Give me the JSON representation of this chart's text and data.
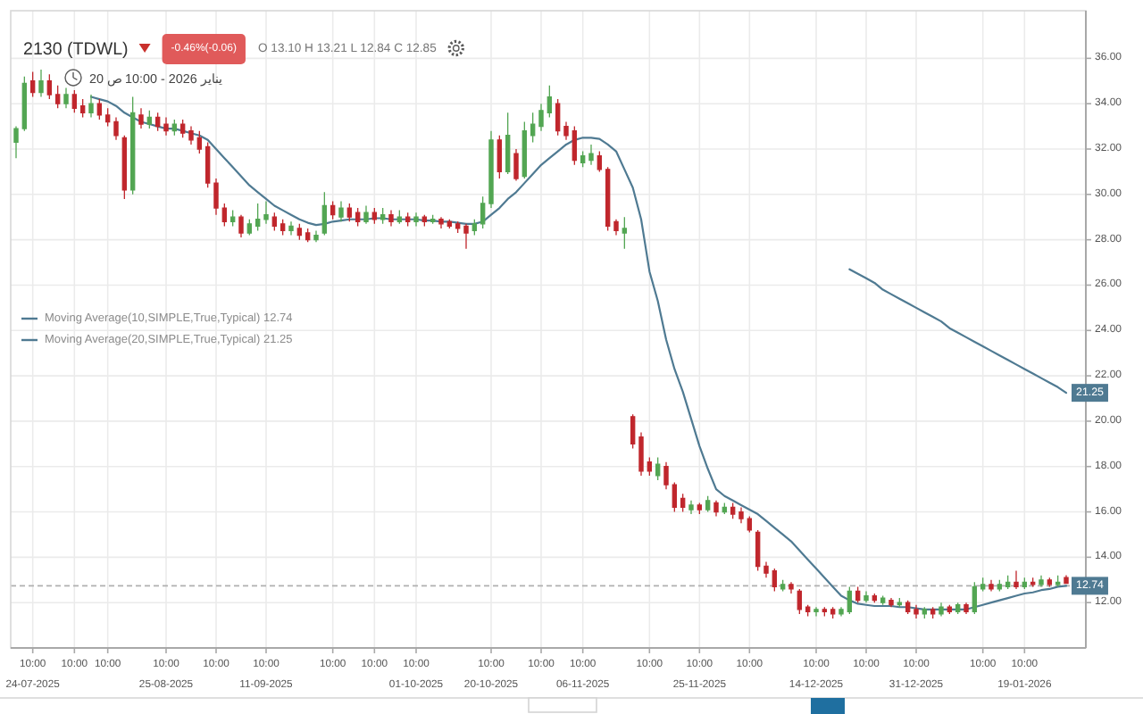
{
  "chart_data": {
    "type": "candlestick",
    "title": "2130 (TDWL)",
    "subtitle": "20 يناير 2026 - 10:00 ص",
    "annotations": [
      "-0.46%(-0.06)",
      "O 13.10 H 13.21 L 12.84 C 12.85"
    ],
    "categories": [
      null,
      null,
      "10:00 24-07-2025",
      null,
      null,
      null,
      null,
      "10:00",
      null,
      null,
      null,
      "10:00",
      null,
      null,
      null,
      null,
      null,
      null,
      "10:00 25-08-2025",
      null,
      null,
      null,
      null,
      null,
      "10:00",
      null,
      null,
      null,
      null,
      null,
      "10:00 11-09-2025",
      null,
      null,
      null,
      null,
      null,
      null,
      null,
      "10:00",
      null,
      null,
      null,
      null,
      "10:00",
      null,
      null,
      null,
      null,
      "10:00 01-10-2025",
      null,
      null,
      null,
      null,
      null,
      null,
      null,
      null,
      "10:00 20-10-2025",
      null,
      null,
      null,
      null,
      null,
      "10:00",
      null,
      null,
      null,
      null,
      "10:00 06-11-2025",
      null,
      null,
      null,
      null,
      null,
      null,
      null,
      "10:00",
      null,
      null,
      null,
      null,
      null,
      "10:00 25-11-2025",
      null,
      null,
      null,
      null,
      null,
      "10:00",
      null,
      null,
      null,
      null,
      null,
      null,
      null,
      "10:00 14-12-2025",
      null,
      null,
      null,
      null,
      null,
      "10:00",
      null,
      null,
      null,
      null,
      null,
      "10:00 31-12-2025",
      null,
      null,
      null,
      null,
      null,
      null,
      null,
      "10:00",
      null,
      null,
      null,
      null,
      "10:00 19-01-2026",
      null,
      null,
      null,
      null,
      null
    ],
    "ohlc": [
      [
        32.3,
        33.0,
        31.6,
        32.9
      ],
      [
        32.9,
        35.2,
        32.8,
        34.9
      ],
      [
        35.0,
        35.4,
        34.3,
        34.5
      ],
      [
        34.5,
        35.5,
        34.3,
        35.0
      ],
      [
        35.0,
        35.3,
        34.2,
        34.4
      ],
      [
        34.4,
        34.8,
        33.8,
        34.0
      ],
      [
        34.0,
        34.7,
        33.8,
        34.4
      ],
      [
        34.4,
        34.6,
        33.6,
        33.8
      ],
      [
        33.9,
        34.2,
        33.4,
        33.6
      ],
      [
        33.6,
        34.4,
        33.4,
        34.0
      ],
      [
        34.0,
        34.2,
        33.3,
        33.5
      ],
      [
        33.5,
        33.8,
        33.0,
        33.2
      ],
      [
        33.2,
        33.4,
        32.4,
        32.6
      ],
      [
        32.5,
        32.6,
        29.8,
        30.2
      ],
      [
        30.2,
        34.3,
        30.0,
        33.6
      ],
      [
        33.5,
        33.8,
        32.9,
        33.1
      ],
      [
        33.1,
        33.7,
        32.9,
        33.4
      ],
      [
        33.4,
        33.6,
        32.8,
        33.0
      ],
      [
        33.1,
        33.4,
        32.6,
        32.8
      ],
      [
        32.8,
        33.3,
        32.6,
        33.1
      ],
      [
        33.1,
        33.3,
        32.5,
        32.7
      ],
      [
        32.8,
        33.0,
        32.2,
        32.4
      ],
      [
        32.5,
        32.8,
        31.8,
        32.0
      ],
      [
        32.1,
        32.3,
        30.3,
        30.5
      ],
      [
        30.5,
        30.7,
        29.1,
        29.4
      ],
      [
        29.4,
        29.6,
        28.6,
        28.8
      ],
      [
        28.8,
        29.3,
        28.6,
        29.0
      ],
      [
        29.0,
        29.1,
        28.1,
        28.3
      ],
      [
        28.3,
        28.9,
        28.2,
        28.7
      ],
      [
        28.6,
        29.6,
        28.4,
        28.9
      ],
      [
        28.9,
        29.7,
        28.7,
        29.1
      ],
      [
        29.0,
        29.2,
        28.4,
        28.6
      ],
      [
        28.7,
        28.9,
        28.2,
        28.4
      ],
      [
        28.4,
        28.8,
        28.2,
        28.6
      ],
      [
        28.5,
        28.7,
        28.0,
        28.2
      ],
      [
        28.3,
        28.5,
        27.9,
        28.0
      ],
      [
        28.0,
        28.4,
        27.9,
        28.2
      ],
      [
        28.3,
        30.1,
        28.2,
        29.5
      ],
      [
        29.5,
        29.7,
        28.9,
        29.1
      ],
      [
        29.0,
        29.7,
        28.8,
        29.4
      ],
      [
        29.4,
        29.6,
        28.8,
        29.0
      ],
      [
        29.2,
        29.4,
        28.6,
        28.8
      ],
      [
        28.8,
        29.5,
        28.7,
        29.2
      ],
      [
        29.2,
        29.4,
        28.7,
        28.9
      ],
      [
        28.9,
        29.4,
        28.7,
        29.1
      ],
      [
        29.1,
        29.3,
        28.6,
        28.8
      ],
      [
        28.8,
        29.3,
        28.7,
        29.0
      ],
      [
        29.0,
        29.2,
        28.6,
        28.8
      ],
      [
        28.8,
        29.2,
        28.6,
        29.0
      ],
      [
        29.0,
        29.1,
        28.6,
        28.8
      ],
      [
        28.8,
        29.1,
        28.7,
        28.9
      ],
      [
        28.9,
        29.0,
        28.5,
        28.7
      ],
      [
        28.8,
        28.9,
        28.5,
        28.6
      ],
      [
        28.7,
        28.8,
        28.3,
        28.5
      ],
      [
        28.6,
        28.7,
        27.6,
        28.3
      ],
      [
        28.4,
        28.9,
        28.2,
        28.7
      ],
      [
        28.7,
        29.9,
        28.5,
        29.6
      ],
      [
        29.6,
        32.8,
        29.4,
        32.4
      ],
      [
        32.4,
        32.6,
        30.7,
        31.0
      ],
      [
        31.0,
        33.6,
        30.9,
        32.6
      ],
      [
        31.8,
        32.0,
        30.6,
        30.7
      ],
      [
        30.8,
        33.2,
        30.7,
        32.8
      ],
      [
        32.6,
        33.6,
        32.3,
        33.1
      ],
      [
        33.0,
        34.0,
        32.8,
        33.7
      ],
      [
        33.6,
        34.8,
        33.4,
        34.3
      ],
      [
        34.0,
        34.2,
        32.6,
        32.8
      ],
      [
        33.0,
        33.2,
        32.4,
        32.6
      ],
      [
        32.8,
        33.0,
        31.3,
        31.5
      ],
      [
        31.4,
        31.9,
        31.2,
        31.7
      ],
      [
        31.5,
        32.2,
        31.3,
        31.8
      ],
      [
        31.7,
        31.9,
        31.0,
        31.1
      ],
      [
        31.1,
        31.2,
        28.4,
        28.6
      ],
      [
        28.8,
        28.9,
        28.2,
        28.4
      ],
      [
        28.3,
        29.0,
        27.6,
        28.5
      ],
      [
        20.2,
        20.3,
        18.8,
        19.0
      ],
      [
        19.3,
        19.5,
        17.6,
        17.8
      ],
      [
        18.2,
        18.4,
        17.6,
        17.8
      ],
      [
        17.6,
        18.4,
        17.4,
        18.1
      ],
      [
        18.0,
        18.2,
        17.0,
        17.2
      ],
      [
        17.2,
        17.3,
        16.0,
        16.2
      ],
      [
        16.6,
        16.8,
        16.0,
        16.2
      ],
      [
        16.1,
        16.5,
        15.9,
        16.3
      ],
      [
        16.3,
        16.4,
        15.9,
        16.1
      ],
      [
        16.1,
        16.7,
        16.0,
        16.5
      ],
      [
        16.4,
        16.5,
        15.8,
        16.0
      ],
      [
        16.0,
        16.4,
        15.9,
        16.2
      ],
      [
        16.2,
        16.4,
        15.7,
        15.9
      ],
      [
        16.0,
        16.2,
        15.5,
        15.7
      ],
      [
        15.7,
        15.8,
        15.1,
        15.2
      ],
      [
        15.1,
        15.2,
        13.4,
        13.6
      ],
      [
        13.6,
        13.8,
        13.1,
        13.3
      ],
      [
        13.4,
        13.5,
        12.5,
        12.7
      ],
      [
        12.6,
        13.0,
        12.5,
        12.8
      ],
      [
        12.8,
        12.9,
        12.4,
        12.6
      ],
      [
        12.5,
        12.6,
        11.5,
        11.7
      ],
      [
        11.8,
        11.9,
        11.4,
        11.6
      ],
      [
        11.6,
        11.8,
        11.4,
        11.7
      ],
      [
        11.7,
        11.8,
        11.4,
        11.6
      ],
      [
        11.7,
        11.8,
        11.3,
        11.5
      ],
      [
        11.5,
        11.8,
        11.4,
        11.7
      ],
      [
        11.6,
        12.7,
        11.5,
        12.5
      ],
      [
        12.5,
        12.7,
        12.0,
        12.1
      ],
      [
        12.1,
        12.5,
        12.0,
        12.3
      ],
      [
        12.3,
        12.4,
        12.0,
        12.1
      ],
      [
        12.0,
        12.3,
        11.9,
        12.2
      ],
      [
        12.1,
        12.2,
        11.8,
        11.9
      ],
      [
        11.9,
        12.2,
        11.8,
        12.0
      ],
      [
        12.0,
        12.1,
        11.5,
        11.6
      ],
      [
        11.7,
        11.9,
        11.3,
        11.5
      ],
      [
        11.5,
        11.8,
        11.3,
        11.7
      ],
      [
        11.7,
        11.8,
        11.3,
        11.5
      ],
      [
        11.5,
        12.0,
        11.4,
        11.8
      ],
      [
        11.8,
        11.9,
        11.5,
        11.6
      ],
      [
        11.6,
        12.0,
        11.5,
        11.9
      ],
      [
        11.9,
        12.0,
        11.5,
        11.6
      ],
      [
        11.6,
        12.9,
        11.5,
        12.7
      ],
      [
        12.6,
        13.1,
        12.5,
        12.8
      ],
      [
        12.8,
        13.0,
        12.5,
        12.6
      ],
      [
        12.6,
        13.0,
        12.5,
        12.8
      ],
      [
        12.7,
        13.2,
        12.6,
        12.9
      ],
      [
        12.9,
        13.4,
        12.6,
        12.7
      ],
      [
        12.7,
        13.1,
        12.6,
        12.9
      ],
      [
        12.9,
        13.1,
        12.7,
        12.8
      ],
      [
        12.8,
        13.2,
        12.7,
        13.0
      ],
      [
        13.0,
        13.1,
        12.7,
        12.8
      ],
      [
        12.8,
        13.2,
        12.7,
        12.9
      ],
      [
        13.1,
        13.21,
        12.84,
        12.85
      ]
    ],
    "colors": [
      "#53a653",
      "#53a653",
      "#c0272d",
      "#53a653",
      "#c0272d",
      "#c0272d",
      "#53a653",
      "#c0272d",
      "#c0272d",
      "#53a653",
      "#c0272d",
      "#c0272d",
      "#c0272d",
      "#c0272d",
      "#53a653",
      "#c0272d",
      "#53a653",
      "#c0272d",
      "#c0272d",
      "#53a653",
      "#c0272d",
      "#c0272d",
      "#c0272d",
      "#c0272d",
      "#c0272d",
      "#c0272d",
      "#53a653",
      "#c0272d",
      "#53a653",
      "#53a653",
      "#53a653",
      "#c0272d",
      "#c0272d",
      "#53a653",
      "#c0272d",
      "#c0272d",
      "#53a653",
      "#53a653",
      "#c0272d",
      "#53a653",
      "#c0272d",
      "#c0272d",
      "#53a653",
      "#c0272d",
      "#53a653",
      "#c0272d",
      "#53a653",
      "#c0272d",
      "#53a653",
      "#c0272d",
      "#53a653",
      "#c0272d",
      "#c0272d",
      "#c0272d",
      "#c0272d",
      "#53a653",
      "#53a653",
      "#53a653",
      "#c0272d",
      "#53a653",
      "#c0272d",
      "#53a653",
      "#53a653",
      "#53a653",
      "#53a653",
      "#c0272d",
      "#c0272d",
      "#c0272d",
      "#53a653",
      "#53a653",
      "#c0272d",
      "#c0272d",
      "#c0272d",
      "#53a653",
      "#c0272d",
      "#c0272d",
      "#c0272d",
      "#53a653",
      "#c0272d",
      "#c0272d",
      "#c0272d",
      "#53a653",
      "#c0272d",
      "#53a653",
      "#c0272d",
      "#53a653",
      "#c0272d",
      "#c0272d",
      "#c0272d",
      "#c0272d",
      "#c0272d",
      "#c0272d",
      "#53a653",
      "#c0272d",
      "#c0272d",
      "#c0272d",
      "#53a653",
      "#c0272d",
      "#c0272d",
      "#53a653",
      "#53a653",
      "#c0272d",
      "#53a653",
      "#c0272d",
      "#53a653",
      "#c0272d",
      "#53a653",
      "#c0272d",
      "#c0272d",
      "#53a653",
      "#c0272d",
      "#53a653",
      "#c0272d",
      "#53a653",
      "#c0272d",
      "#53a653",
      "#53a653",
      "#c0272d",
      "#53a653",
      "#53a653",
      "#c0272d",
      "#53a653",
      "#c0272d",
      "#53a653",
      "#c0272d",
      "#53a653",
      "#c0272d"
    ],
    "series": [
      {
        "type": "line",
        "name": "Moving Average(10,SIMPLE,True,Typical) 12.74",
        "color": "#4f7a92",
        "values": [
          null,
          null,
          null,
          null,
          null,
          null,
          null,
          null,
          null,
          34.3,
          34.2,
          34.1,
          33.9,
          33.6,
          33.4,
          33.2,
          33.1,
          33.0,
          32.9,
          32.9,
          32.8,
          32.7,
          32.6,
          32.4,
          32.0,
          31.6,
          31.2,
          30.8,
          30.4,
          30.1,
          29.8,
          29.5,
          29.3,
          29.1,
          28.9,
          28.75,
          28.65,
          28.7,
          28.8,
          28.85,
          28.9,
          28.9,
          28.9,
          28.95,
          28.95,
          28.9,
          28.9,
          28.9,
          28.9,
          28.85,
          28.85,
          28.8,
          28.8,
          28.75,
          28.7,
          28.7,
          28.8,
          29.1,
          29.4,
          29.8,
          30.1,
          30.5,
          30.9,
          31.3,
          31.6,
          31.9,
          32.2,
          32.4,
          32.5,
          32.5,
          32.45,
          32.2,
          31.9,
          31.1,
          30.3,
          28.9,
          26.6,
          25.3,
          23.6,
          22.3,
          21.3,
          20.1,
          18.9,
          17.9,
          17.0,
          16.7,
          16.5,
          16.3,
          16.1,
          15.9,
          15.6,
          15.3,
          15.0,
          14.7,
          14.3,
          13.9,
          13.5,
          13.1,
          12.7,
          12.3,
          12.1,
          11.95,
          11.9,
          11.85,
          11.85,
          11.85,
          11.8,
          11.8,
          11.75,
          11.7,
          11.7,
          11.7,
          11.7,
          11.7,
          11.7,
          11.8,
          11.9,
          12.0,
          12.1,
          12.2,
          12.3,
          12.4,
          12.45,
          12.55,
          12.6,
          12.7,
          12.74
        ],
        "value_labels": [
          null,
          null,
          null,
          null,
          null,
          null,
          null,
          null,
          null,
          null,
          null,
          null,
          null,
          null,
          null,
          null,
          null,
          null,
          null,
          null,
          null,
          null,
          null,
          null,
          null,
          null,
          null,
          null,
          null,
          null,
          null,
          null,
          null,
          null,
          null,
          null,
          null,
          null,
          null,
          null,
          null,
          null,
          null,
          null,
          null,
          null,
          null,
          null,
          null,
          null,
          null,
          null,
          null,
          null,
          null,
          null,
          null,
          null,
          null,
          null,
          null,
          null,
          null,
          null,
          null,
          null,
          null,
          null,
          null,
          null,
          null,
          null,
          null,
          null,
          null,
          null,
          null,
          null,
          null,
          null,
          null,
          null,
          null,
          null,
          null,
          null,
          null,
          null,
          null,
          null,
          null,
          null,
          null,
          null,
          null,
          null,
          null,
          null,
          null,
          null,
          null,
          null,
          null,
          null,
          null,
          null,
          null,
          null,
          null,
          null,
          null,
          null,
          null,
          null,
          null,
          null,
          null,
          null,
          null,
          null,
          null,
          null,
          null,
          null,
          null,
          null,
          "12.74"
        ]
      },
      {
        "type": "line",
        "name": "Moving Average(20,SIMPLE,True,Typical) 21.25",
        "color": "#4f7a92",
        "values": [
          null,
          null,
          null,
          null,
          null,
          null,
          null,
          null,
          null,
          null,
          null,
          null,
          null,
          null,
          null,
          null,
          null,
          null,
          null,
          null,
          null,
          null,
          null,
          null,
          null,
          null,
          null,
          null,
          null,
          null,
          null,
          null,
          null,
          null,
          null,
          null,
          null,
          null,
          null,
          null,
          null,
          null,
          null,
          null,
          null,
          null,
          null,
          null,
          null,
          null,
          null,
          null,
          null,
          null,
          null,
          null,
          null,
          null,
          null,
          null,
          null,
          null,
          null,
          null,
          null,
          null,
          null,
          null,
          null,
          null,
          null,
          null,
          null,
          null,
          null,
          null,
          null,
          null,
          null,
          null,
          null,
          null,
          null,
          null,
          null,
          null,
          null,
          null,
          null,
          null,
          null,
          null,
          null,
          null,
          null,
          null,
          null,
          null,
          null,
          null,
          26.7,
          26.5,
          26.3,
          26.1,
          25.8,
          25.6,
          25.4,
          25.2,
          25.0,
          24.8,
          24.6,
          24.4,
          24.1,
          23.9,
          23.7,
          23.5,
          23.3,
          23.1,
          22.9,
          22.7,
          22.5,
          22.3,
          22.1,
          21.9,
          21.7,
          21.5,
          21.25
        ],
        "value_labels": [
          null,
          null,
          null,
          null,
          null,
          null,
          null,
          null,
          null,
          null,
          null,
          null,
          null,
          null,
          null,
          null,
          null,
          null,
          null,
          null,
          null,
          null,
          null,
          null,
          null,
          null,
          null,
          null,
          null,
          null,
          null,
          null,
          null,
          null,
          null,
          null,
          null,
          null,
          null,
          null,
          null,
          null,
          null,
          null,
          null,
          null,
          null,
          null,
          null,
          null,
          null,
          null,
          null,
          null,
          null,
          null,
          null,
          null,
          null,
          null,
          null,
          null,
          null,
          null,
          null,
          null,
          null,
          null,
          null,
          null,
          null,
          null,
          null,
          null,
          null,
          null,
          null,
          null,
          null,
          null,
          null,
          null,
          null,
          null,
          null,
          null,
          null,
          null,
          null,
          null,
          null,
          null,
          null,
          null,
          null,
          null,
          null,
          null,
          null,
          null,
          null,
          null,
          null,
          null,
          null,
          null,
          null,
          null,
          null,
          null,
          null,
          null,
          null,
          null,
          null,
          null,
          null,
          null,
          null,
          null,
          null,
          null,
          null,
          null,
          null,
          null,
          "21.25"
        ]
      }
    ],
    "ref_lines": [
      {
        "axis": "y",
        "value": 12.74,
        "color": "#b0b0b0",
        "line_style": "dashed"
      }
    ],
    "ylim": [
      10,
      38.1
    ],
    "yticks": [
      {
        "value": 12,
        "label": "12.00"
      },
      {
        "value": 14,
        "label": "14.00"
      },
      {
        "value": 16,
        "label": "16.00"
      },
      {
        "value": 18,
        "label": "18.00"
      },
      {
        "value": 20,
        "label": "20.00"
      },
      {
        "value": 22,
        "label": "22.00"
      },
      {
        "value": 24,
        "label": "24.00"
      },
      {
        "value": 26,
        "label": "26.00"
      },
      {
        "value": 28,
        "label": "28.00"
      },
      {
        "value": 30,
        "label": "30.00"
      },
      {
        "value": 32,
        "label": "32.00"
      },
      {
        "value": 34,
        "label": "34.00"
      },
      {
        "value": 36,
        "label": "36.00"
      }
    ],
    "grid": true,
    "legend": "left"
  }
}
